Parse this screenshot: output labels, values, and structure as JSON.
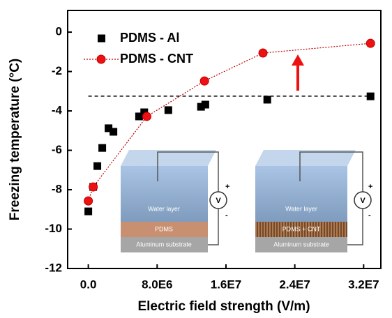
{
  "chart_data": {
    "type": "scatter",
    "y_label": "Freezing temperature (°C)",
    "x_label": "Electric field strength (V/m)",
    "xlim": [
      -2400000,
      34000000
    ],
    "xticks": [
      {
        "value": 0,
        "label": "0.0"
      },
      {
        "value": 8000000,
        "label": "8.0E6"
      },
      {
        "value": 16000000,
        "label": "1.6E7"
      },
      {
        "value": 24000000,
        "label": "2.4E7"
      },
      {
        "value": 32000000,
        "label": "3.2E7"
      }
    ],
    "ylim": [
      -12,
      1.1
    ],
    "yticks": [
      0,
      -2,
      -4,
      -6,
      -8,
      -10,
      -12
    ],
    "reference_line": -3.25,
    "series": [
      {
        "name": "PDMS - Al",
        "color": "#000000",
        "marker": "square",
        "x": [
          0,
          570000,
          1050000,
          1620000,
          2350000,
          2920000,
          5900000,
          6500000,
          9300000,
          13100000,
          13600000,
          20800000,
          32800000
        ],
        "values": [
          -9.1,
          -7.86,
          -6.8,
          -5.88,
          -4.88,
          -5.06,
          -4.28,
          -4.07,
          -3.96,
          -3.79,
          -3.68,
          -3.43,
          -3.26
        ]
      },
      {
        "name": "PDMS - CNT",
        "color": "#ee1111",
        "marker": "circle",
        "x": [
          0,
          570000,
          6800000,
          13500000,
          20300000,
          32800000
        ],
        "values": [
          -8.57,
          -7.86,
          -4.28,
          -2.48,
          -1.06,
          -0.57
        ]
      }
    ],
    "insets": [
      {
        "layers": [
          "Water layer",
          "PDMS",
          "Aluminum substrate"
        ],
        "meter": "V",
        "plus": "+",
        "minus": "-"
      },
      {
        "layers": [
          "Water layer",
          "PDMS + CNT",
          "Aluminum substrate"
        ],
        "meter": "V",
        "plus": "+",
        "minus": "-"
      }
    ]
  }
}
